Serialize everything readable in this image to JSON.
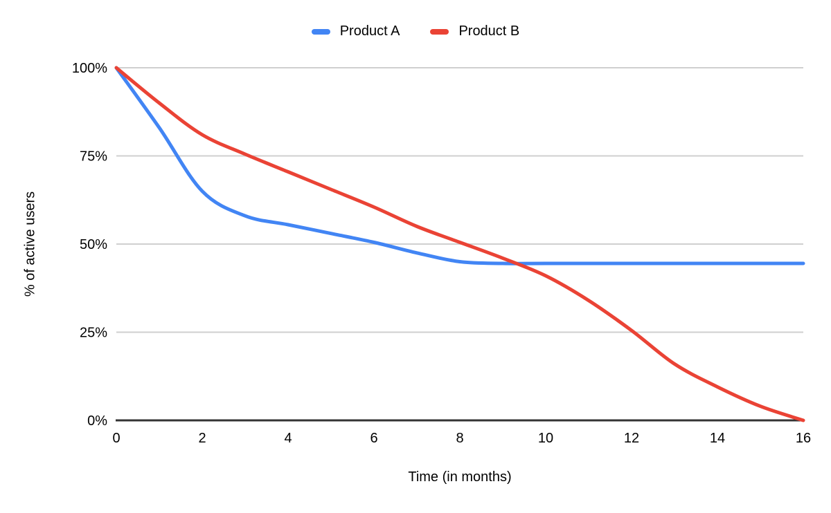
{
  "legend": {
    "items": [
      {
        "label": "Product A",
        "color": "#4285F4"
      },
      {
        "label": "Product B",
        "color": "#EA4335"
      }
    ]
  },
  "chart_data": {
    "type": "line",
    "title": "",
    "xlabel": "Time (in months)",
    "ylabel": "% of active users",
    "xlim": [
      0,
      16
    ],
    "ylim": [
      0,
      100
    ],
    "grid": true,
    "legend_position": "top-center",
    "x": [
      0,
      1,
      2,
      3,
      4,
      5,
      6,
      7,
      8,
      9,
      10,
      11,
      12,
      13,
      14,
      15,
      16
    ],
    "series": [
      {
        "name": "Product A",
        "color": "#4285F4",
        "values": [
          100,
          83,
          65,
          58,
          55.5,
          53,
          50.5,
          47.5,
          45,
          44.5,
          44.5,
          44.5,
          44.5,
          44.5,
          44.5,
          44.5,
          44.5
        ]
      },
      {
        "name": "Product B",
        "color": "#EA4335",
        "values": [
          100,
          90,
          81,
          75.5,
          70.5,
          65.5,
          60.5,
          55,
          50.5,
          46,
          41,
          34,
          25.5,
          16,
          9.5,
          4,
          0
        ]
      }
    ],
    "xticks": {
      "values": [
        0,
        2,
        4,
        6,
        8,
        10,
        12,
        14,
        16
      ],
      "labels": [
        "0",
        "2",
        "4",
        "6",
        "8",
        "10",
        "12",
        "14",
        "16"
      ]
    },
    "yticks": {
      "values": [
        0,
        25,
        50,
        75,
        100
      ],
      "labels": [
        "0%",
        "25%",
        "50%",
        "75%",
        "100%"
      ]
    },
    "colors": {
      "grid": "#CFCFCF",
      "axis": "#333333",
      "text": "#000000",
      "background": "#FFFFFF"
    }
  }
}
